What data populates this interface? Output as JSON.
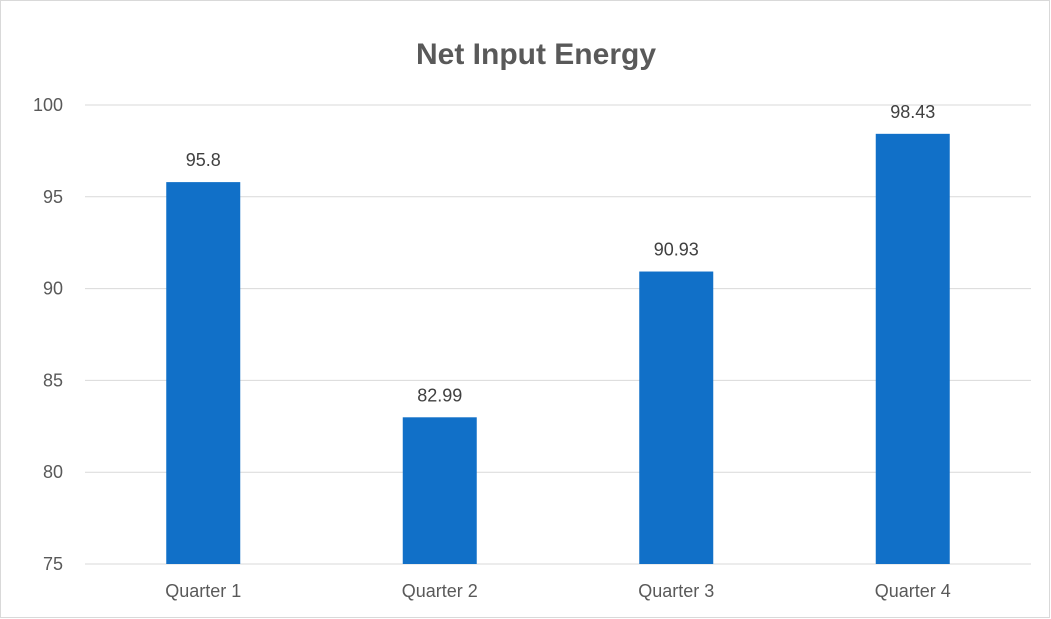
{
  "chart_data": {
    "type": "bar",
    "title": "Net Input Energy",
    "categories": [
      "Quarter 1",
      "Quarter 2",
      "Quarter 3",
      "Quarter 4"
    ],
    "series": [
      {
        "values": [
          95.8,
          82.99,
          90.93,
          98.43
        ]
      }
    ],
    "data_labels": [
      "95.8",
      "82.99",
      "90.93",
      "98.43"
    ],
    "ylim": [
      75,
      100
    ],
    "y_ticks": [
      75,
      80,
      85,
      90,
      95,
      100
    ],
    "xlabel": "",
    "ylabel": "",
    "grid": true,
    "legend": "none",
    "colors": {
      "bar": "#1170C8",
      "gridline": "#d9d9d9",
      "text": "#595959",
      "frame": "#d9d9d9"
    }
  }
}
